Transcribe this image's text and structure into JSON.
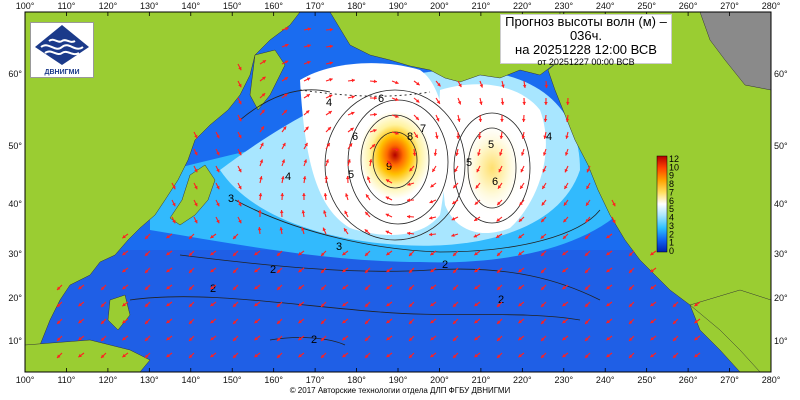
{
  "title": {
    "line1": "Прогноз высоты волн (м) –",
    "line2": "036ч.",
    "line3": "на 20251228 12:00 ВСВ",
    "line4": "от 20251227 00:00 ВСВ"
  },
  "logo": {
    "text": "ДВНИГМИ"
  },
  "copyright": "© 2017 Авторские технологии отдела ДЛП ФГБУ ДВНИГМИ",
  "axes": {
    "top_lon": [
      "100°",
      "110°",
      "120°",
      "130°",
      "140°",
      "150°",
      "160°",
      "170°",
      "180°",
      "190°",
      "200°",
      "210°",
      "220°",
      "230°",
      "240°",
      "250°",
      "260°",
      "270°",
      "280°"
    ],
    "bottom_lon": [
      "100°",
      "110°",
      "120°",
      "130°",
      "140°",
      "150°",
      "160°",
      "170°",
      "180°",
      "190°",
      "200°",
      "210°",
      "220°",
      "230°",
      "240°",
      "250°",
      "260°",
      "270°",
      "280°"
    ],
    "left_lat": [
      "60°",
      "50°",
      "40°",
      "30°",
      "20°",
      "10°"
    ],
    "right_lat": [
      "60°",
      "50°",
      "40°",
      "30°",
      "20°",
      "10°"
    ]
  },
  "color_scale": {
    "labels": [
      "12",
      "10",
      "9",
      "8",
      "7",
      "6",
      "5",
      "4",
      "3",
      "2",
      "1",
      "0"
    ],
    "colors": [
      "#b30000",
      "#e03000",
      "#ff7000",
      "#ffb000",
      "#ffe070",
      "#fffbd0",
      "#ffffff",
      "#a8e6ff",
      "#37c8ff",
      "#1a8cff",
      "#0a40e0",
      "#0020b0"
    ]
  },
  "contour_labels": [
    "4",
    "6",
    "8",
    "9",
    "6",
    "5",
    "7",
    "5",
    "4",
    "5",
    "6",
    "4",
    "3",
    "3",
    "2",
    "2",
    "2",
    "2",
    "2"
  ],
  "colors": {
    "land": "#9acd32",
    "land_gray": "#8a8a8a",
    "arrow": "#ff2020",
    "contour": "#222222"
  }
}
